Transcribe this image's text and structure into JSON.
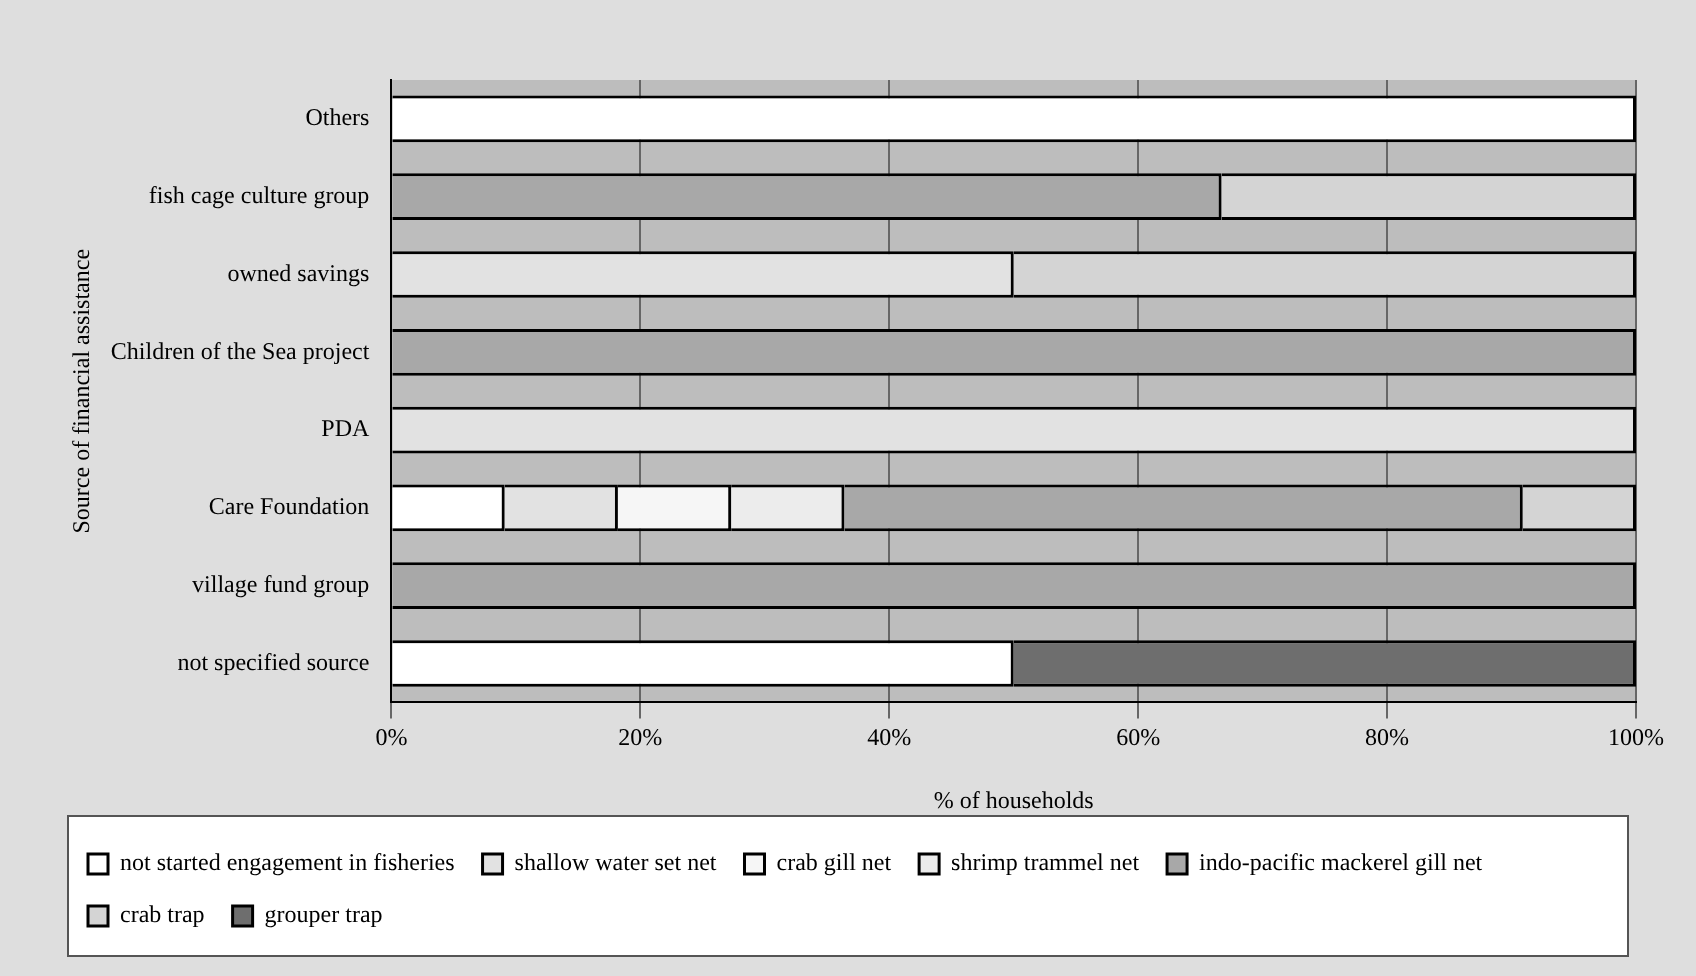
{
  "chart_data": {
    "type": "bar",
    "orientation": "horizontal",
    "stacked": true,
    "ylabel": "Source of financial assistance",
    "xlabel": "% of households",
    "categories": [
      "Others",
      "fish cage culture group",
      "owned savings",
      "Children of the Sea project",
      "PDA",
      "Care Foundation",
      "village fund group",
      "not specified source"
    ],
    "series": [
      {
        "name": "not started engagement in fisheries",
        "color": "#ffffff",
        "values": [
          100,
          0,
          0,
          0,
          0,
          9.1,
          0,
          50
        ]
      },
      {
        "name": "shallow water set net",
        "color": "#e2e2e2",
        "values": [
          0,
          0,
          50,
          0,
          100,
          9.1,
          0,
          0
        ]
      },
      {
        "name": "crab gill net",
        "color": "#f6f6f6",
        "values": [
          0,
          0,
          0,
          0,
          0,
          9.1,
          0,
          0
        ]
      },
      {
        "name": "shrimp trammel net",
        "color": "#ececec",
        "values": [
          0,
          0,
          0,
          0,
          0,
          9.1,
          0,
          0
        ]
      },
      {
        "name": "indo-pacific mackerel gill net",
        "color": "#a8a8a8",
        "values": [
          0,
          66.7,
          0,
          100,
          0,
          54.5,
          100,
          0
        ]
      },
      {
        "name": "crab trap",
        "color": "#d4d4d4",
        "values": [
          0,
          33.3,
          50,
          0,
          0,
          9.1,
          0,
          0
        ]
      },
      {
        "name": "grouper trap",
        "color": "#6e6e6e",
        "values": [
          0,
          0,
          0,
          0,
          0,
          0,
          0,
          50
        ]
      }
    ],
    "xlim": [
      0,
      100
    ],
    "xticks": [
      {
        "value": 0,
        "label": "0%"
      },
      {
        "value": 20,
        "label": "20%"
      },
      {
        "value": 40,
        "label": "40%"
      },
      {
        "value": 60,
        "label": "60%"
      },
      {
        "value": 80,
        "label": "80%"
      },
      {
        "value": 100,
        "label": "100%"
      }
    ],
    "grid": "x",
    "legend": "bottom"
  }
}
